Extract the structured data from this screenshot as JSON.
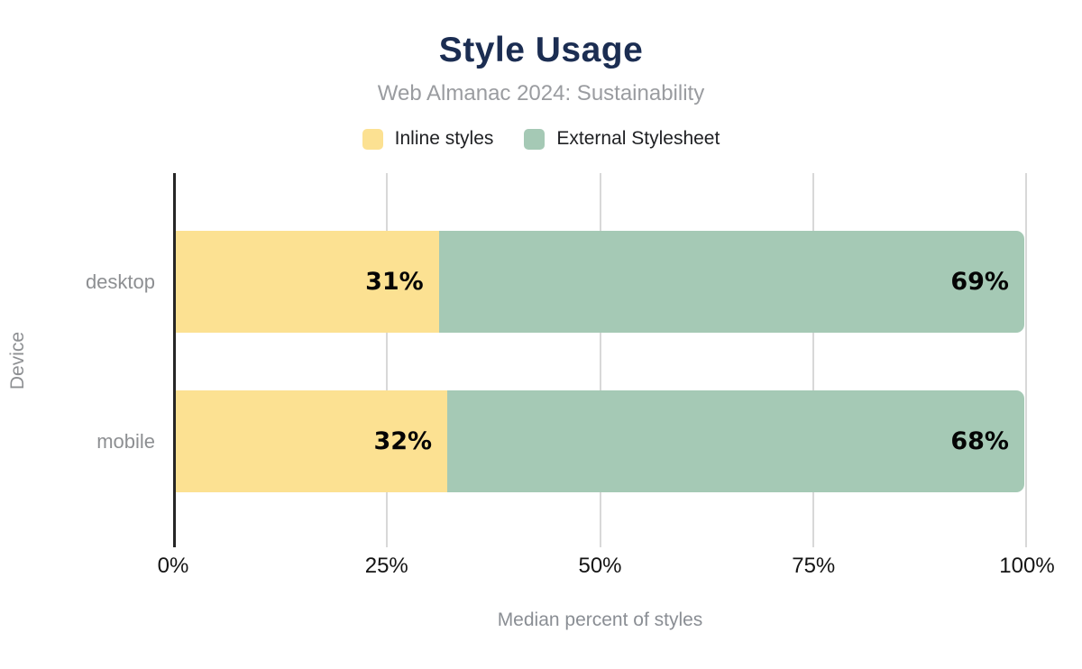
{
  "header": {
    "title": "Style Usage",
    "subtitle": "Web Almanac 2024: Sustainability"
  },
  "chart_data": {
    "type": "bar",
    "orientation": "horizontal",
    "stacked": true,
    "title": "Style Usage",
    "subtitle": "Web Almanac 2024: Sustainability",
    "categories": [
      "desktop",
      "mobile"
    ],
    "series": [
      {
        "name": "Inline styles",
        "color": "#FCE192",
        "values": [
          31,
          32
        ],
        "labels": [
          "31%",
          "32%"
        ]
      },
      {
        "name": "External Stylesheet",
        "color": "#A5C9B5",
        "values": [
          69,
          68
        ],
        "labels": [
          "69%",
          "68%"
        ]
      }
    ],
    "x_ticks": [
      "0%",
      "25%",
      "50%",
      "75%",
      "100%"
    ],
    "xlim": [
      0,
      100
    ],
    "xlabel": "Median percent of styles",
    "ylabel": "Device",
    "grid": true,
    "legend_position": "top",
    "data_label_format": "{value}%"
  },
  "colors": {
    "title": "#1b2d52",
    "subtitle": "#9a9ca0",
    "axis_text": "#141414",
    "muted_text": "#8d8f92",
    "gridline": "#d8d8d8",
    "axis_line": "#262626",
    "background": "#ffffff"
  }
}
